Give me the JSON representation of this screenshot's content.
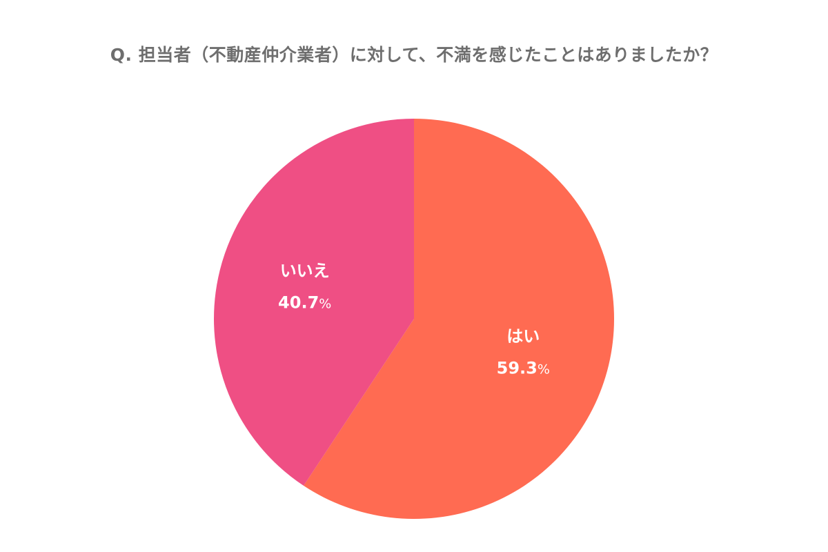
{
  "chart_data": {
    "type": "pie",
    "title": "Q. 担当者（不動産仲介業者）に対して、不満を感じたことはありましたか？",
    "categories": [
      "はい",
      "いいえ"
    ],
    "values": [
      59.3,
      40.7
    ],
    "value_labels": [
      "59.3",
      "40.7"
    ],
    "unit": "%",
    "colors": [
      "#ff6b52",
      "#ef4f84"
    ],
    "start_angle_deg": 0,
    "direction": "clockwise",
    "legend": "none"
  }
}
